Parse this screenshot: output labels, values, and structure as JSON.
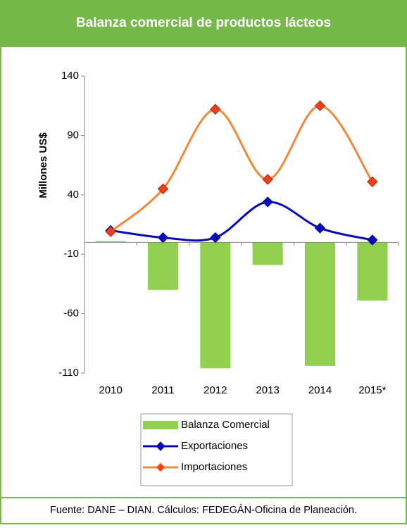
{
  "chart_data": {
    "type": "combo",
    "title": "Balanza comercial de productos lácteos",
    "ylabel": "Millones US$",
    "categories": [
      "2010",
      "2011",
      "2012",
      "2013",
      "2014",
      "2015*"
    ],
    "series": [
      {
        "name": "Balanza Comercial",
        "type": "bar",
        "color": "#92d050",
        "values": [
          1,
          -40,
          -106,
          -19,
          -104,
          -49
        ]
      },
      {
        "name": "Exportaciones",
        "type": "line",
        "color": "#0a0ab4",
        "marker_color": "#0a0ab4",
        "values": [
          10,
          4,
          4,
          34,
          12,
          2
        ]
      },
      {
        "name": "Importaciones",
        "type": "line",
        "color": "#f0883a",
        "marker_color": "#f0401a",
        "values": [
          9,
          45,
          112,
          53,
          115,
          51
        ]
      }
    ],
    "ylim": [
      -110,
      140
    ],
    "yticks": [
      -110,
      -60,
      -10,
      40,
      90,
      140
    ],
    "grid": false,
    "smooth": true,
    "legend": "bottom"
  },
  "footer": "Fuente: DANE – DIAN. Cálculos: FEDEGÁN-Oficina de Planeación."
}
